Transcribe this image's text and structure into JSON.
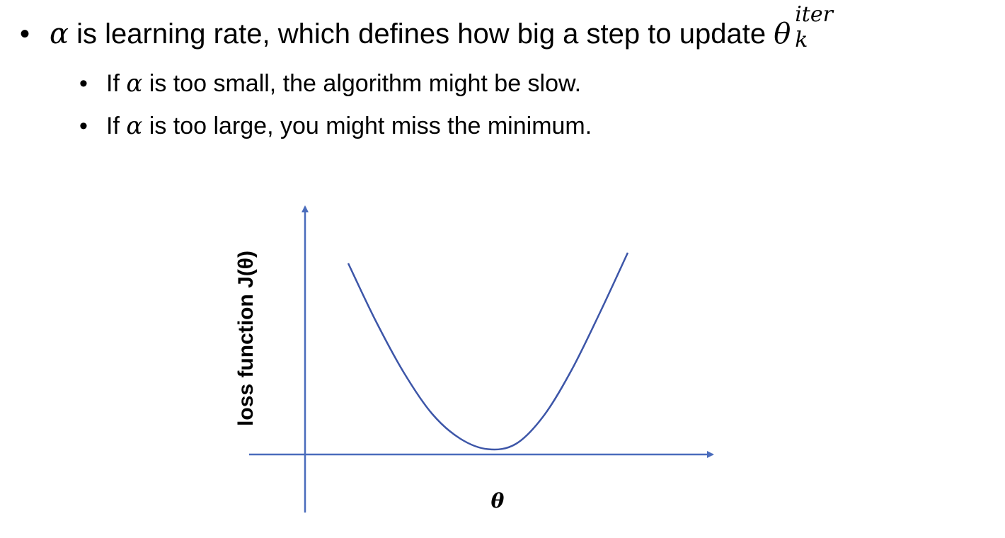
{
  "slide": {
    "main_bullet": {
      "symbol": "α",
      "text": " is learning rate, which defines how big a step to update ",
      "theta": "θ",
      "superscript": "iter",
      "subscript": "k"
    },
    "sub_bullets": [
      {
        "prefix": "If ",
        "symbol": "α",
        "text": " is too small, the algorithm might be slow."
      },
      {
        "prefix": "If ",
        "symbol": "α",
        "text": " is too large, you might miss the minimum."
      }
    ]
  },
  "chart_data": {
    "type": "line",
    "title": "",
    "xlabel": "θ",
    "ylabel": "loss function J(θ)",
    "series": [
      {
        "x": [
          0,
          1,
          2,
          3,
          4,
          5,
          6,
          7,
          8,
          9,
          10
        ],
        "y": [
          10.8,
          7.5,
          4.6,
          2.3,
          0.9,
          0.3,
          0.6,
          2.2,
          4.8,
          8.0,
          11.4
        ]
      }
    ],
    "curve_color": "#3d56a8",
    "axis_color": "#4a6cbc",
    "grid": false
  }
}
